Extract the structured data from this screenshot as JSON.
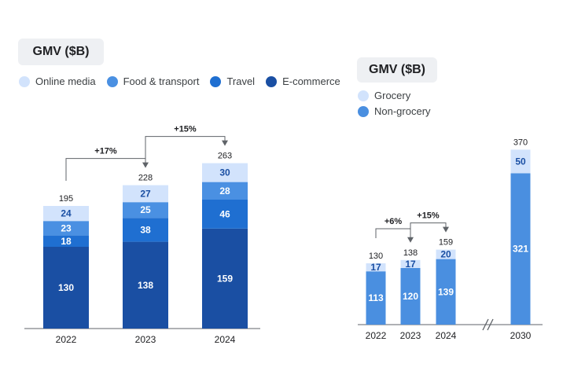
{
  "colors": {
    "online_media": "#d2e3fc",
    "food_transport": "#4a90e2",
    "travel": "#1f6fd1",
    "ecommerce": "#1a4fa3",
    "grocery": "#d2e3fc",
    "non_grocery": "#4a8fe0"
  },
  "chart_data": [
    {
      "type": "bar",
      "stacked": true,
      "title": "GMV ($B)",
      "categories": [
        "2022",
        "2023",
        "2024"
      ],
      "series": [
        {
          "name": "E-commerce",
          "values": [
            130,
            138,
            159
          ],
          "color_key": "ecommerce"
        },
        {
          "name": "Travel",
          "values": [
            18,
            38,
            46
          ],
          "color_key": "travel"
        },
        {
          "name": "Food & transport",
          "values": [
            23,
            25,
            28
          ],
          "color_key": "food_transport"
        },
        {
          "name": "Online media",
          "values": [
            24,
            27,
            30
          ],
          "color_key": "online_media"
        }
      ],
      "legend_order": [
        "Online media",
        "Food & transport",
        "Travel",
        "E-commerce"
      ],
      "totals": [
        "195",
        "228",
        "263"
      ],
      "growth": [
        {
          "from": "2022",
          "to": "2023",
          "label": "+17%"
        },
        {
          "from": "2023",
          "to": "2024",
          "label": "+15%"
        }
      ],
      "legend_position": "top"
    },
    {
      "type": "bar",
      "stacked": true,
      "title": "GMV ($B)",
      "categories": [
        "2022",
        "2023",
        "2024",
        "2030"
      ],
      "axis_break": "between 2024 and 2030",
      "series": [
        {
          "name": "Non-grocery",
          "values": [
            113,
            120,
            139,
            321
          ],
          "color_key": "non_grocery"
        },
        {
          "name": "Grocery",
          "values": [
            17,
            17,
            20,
            50
          ],
          "color_key": "grocery"
        }
      ],
      "legend_order": [
        "Grocery",
        "Non-grocery"
      ],
      "totals": [
        "130",
        "138",
        "159",
        "370"
      ],
      "growth": [
        {
          "from": "2022",
          "to": "2023",
          "label": "+6%"
        },
        {
          "from": "2023",
          "to": "2024",
          "label": "+15%"
        }
      ],
      "legend_position": "top-left"
    }
  ]
}
